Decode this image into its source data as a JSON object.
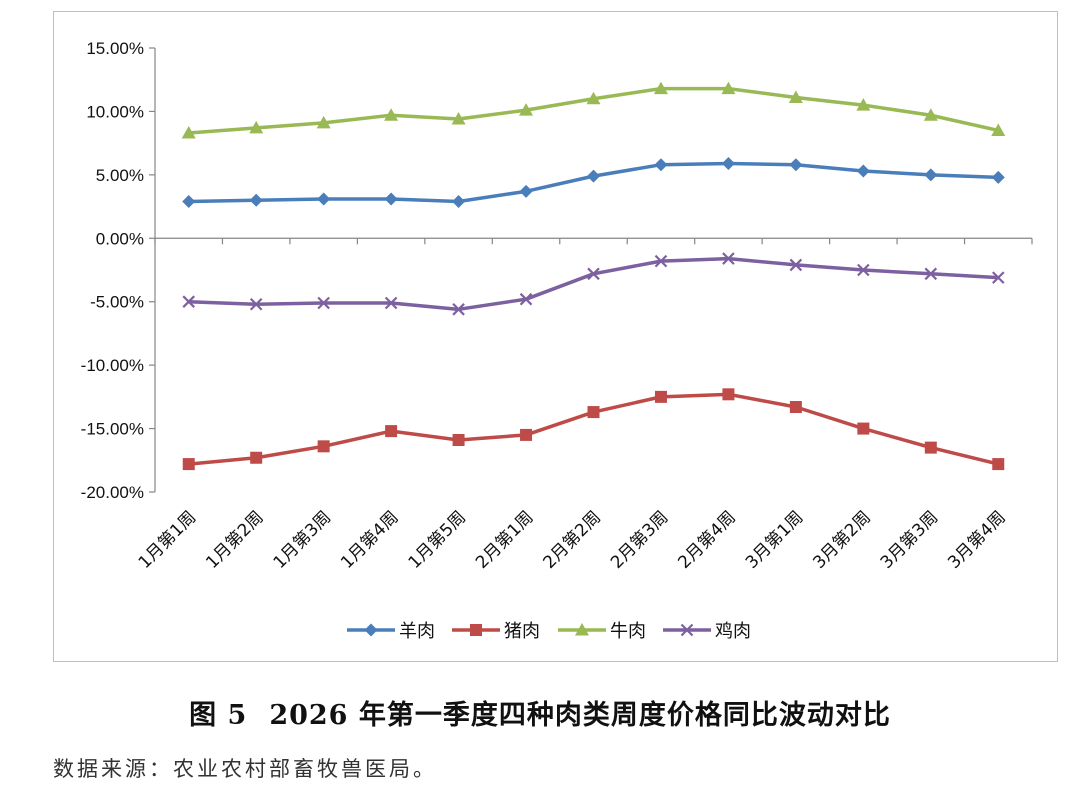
{
  "chart_data": {
    "type": "line",
    "categories": [
      "1月第1周",
      "1月第2周",
      "1月第3周",
      "1月第4周",
      "1月第5周",
      "2月第1周",
      "2月第2周",
      "2月第3周",
      "2月第4周",
      "3月第1周",
      "3月第2周",
      "3月第3周",
      "3月第4周"
    ],
    "series": [
      {
        "name": "羊肉",
        "color": "#4a7ebb",
        "marker": "diamond",
        "values": [
          2.9,
          3.0,
          3.1,
          3.1,
          2.9,
          3.7,
          4.9,
          5.8,
          5.9,
          5.8,
          5.3,
          5.0,
          4.8
        ]
      },
      {
        "name": "猪肉",
        "color": "#be4b48",
        "marker": "square",
        "values": [
          -17.8,
          -17.3,
          -16.4,
          -15.2,
          -15.9,
          -15.5,
          -13.7,
          -12.5,
          -12.3,
          -13.3,
          -15.0,
          -16.5,
          -17.8
        ]
      },
      {
        "name": "牛肉",
        "color": "#98b954",
        "marker": "triangle",
        "values": [
          8.3,
          8.7,
          9.1,
          9.7,
          9.4,
          10.1,
          11.0,
          11.8,
          11.8,
          11.1,
          10.5,
          9.7,
          8.5
        ]
      },
      {
        "name": "鸡肉",
        "color": "#7d60a0",
        "marker": "x",
        "values": [
          -5.0,
          -5.2,
          -5.1,
          -5.1,
          -5.6,
          -4.8,
          -2.8,
          -1.8,
          -1.6,
          -2.1,
          -2.5,
          -2.8,
          -3.1
        ]
      }
    ],
    "ylim": [
      -20,
      15
    ],
    "ytick_step": 5,
    "ytick_labels": [
      "15.00%",
      "10.00%",
      "5.00%",
      "0.00%",
      "-5.00%",
      "-10.00%",
      "-15.00%",
      "-20.00%"
    ],
    "title": "",
    "xlabel": "",
    "ylabel": "",
    "legend_position": "bottom-center",
    "grid": false
  },
  "caption": {
    "figure_number": "图 5",
    "text": "2026 年第一季度四种肉类周度价格同比波动对比"
  },
  "source_note": "数据来源：农业农村部畜牧兽医局。"
}
